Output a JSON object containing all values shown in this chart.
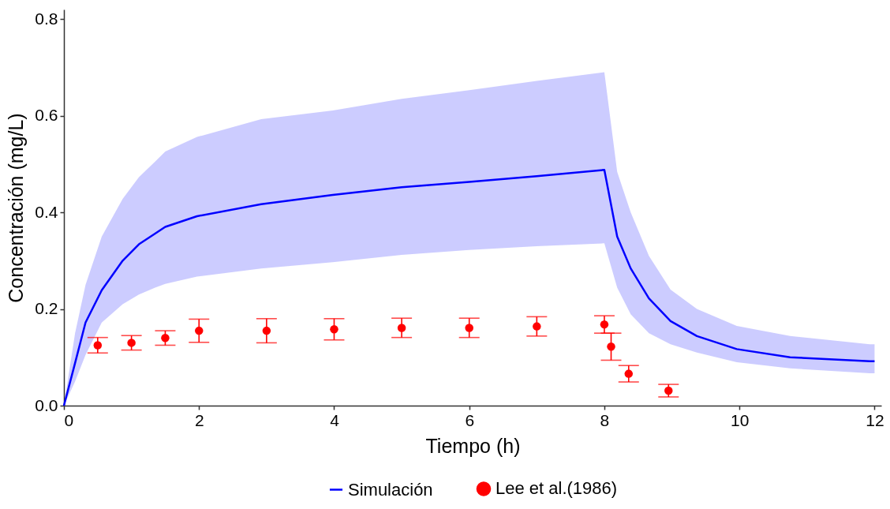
{
  "chart_data": {
    "type": "line",
    "xlabel": "Tiempo (h)",
    "ylabel": "Concentración (mg/L)",
    "xlim": [
      0,
      12.1
    ],
    "xticks": [
      0,
      2,
      4,
      6,
      8,
      10,
      12
    ],
    "ylim": [
      0,
      0.82
    ],
    "yticks": [
      {
        "value": 0,
        "label": "0.0"
      },
      {
        "value": 0.2,
        "label": "0.2"
      },
      {
        "value": 0.4,
        "label": "0.4"
      },
      {
        "value": 0.6,
        "label": "0.6"
      },
      {
        "value": 0.8,
        "label": "0.8"
      }
    ],
    "grid": false,
    "legend": "bottom",
    "series": [
      {
        "name": "Simulación",
        "type": "line",
        "color": "#0000ff",
        "line_style": "solid",
        "x": [
          0,
          0.165,
          0.32,
          0.56,
          0.87,
          1.11,
          1.35,
          1.5,
          1.97,
          2.92,
          3.98,
          5,
          6,
          7,
          8,
          8.19,
          8.39,
          8.66,
          8.98,
          9.37,
          9.96,
          10.75,
          11.93,
          12
        ],
        "values": [
          0,
          0.088,
          0.172,
          0.239,
          0.3,
          0.334,
          0.356,
          0.37,
          0.392,
          0.417,
          0.436,
          0.452,
          0.463,
          0.475,
          0.488,
          0.35,
          0.284,
          0.222,
          0.175,
          0.144,
          0.117,
          0.1,
          0.092,
          0.092
        ],
        "lower": [
          0,
          0.05,
          0.105,
          0.172,
          0.21,
          0.23,
          0.244,
          0.252,
          0.267,
          0.284,
          0.297,
          0.312,
          0.322,
          0.33,
          0.336,
          0.244,
          0.189,
          0.15,
          0.127,
          0.11,
          0.09,
          0.077,
          0.067,
          0.067
        ],
        "upper": [
          0,
          0.15,
          0.25,
          0.35,
          0.428,
          0.473,
          0.505,
          0.526,
          0.556,
          0.593,
          0.611,
          0.635,
          0.653,
          0.672,
          0.69,
          0.484,
          0.4,
          0.31,
          0.24,
          0.2,
          0.165,
          0.144,
          0.127,
          0.127
        ]
      },
      {
        "name": "Lee et al.(1986)",
        "type": "scatter",
        "color": "#ff0000",
        "marker": "circle",
        "x": [
          0.5,
          1,
          1.5,
          2,
          3,
          4,
          5,
          6,
          7,
          8,
          8.1,
          8.36,
          8.95
        ],
        "values": [
          0.125,
          0.13,
          0.14,
          0.155,
          0.155,
          0.158,
          0.161,
          0.161,
          0.164,
          0.168,
          0.122,
          0.066,
          0.031
        ],
        "errors": [
          0.016,
          0.015,
          0.015,
          0.024,
          0.025,
          0.022,
          0.02,
          0.02,
          0.02,
          0.018,
          0.028,
          0.017,
          0.013
        ]
      }
    ]
  }
}
